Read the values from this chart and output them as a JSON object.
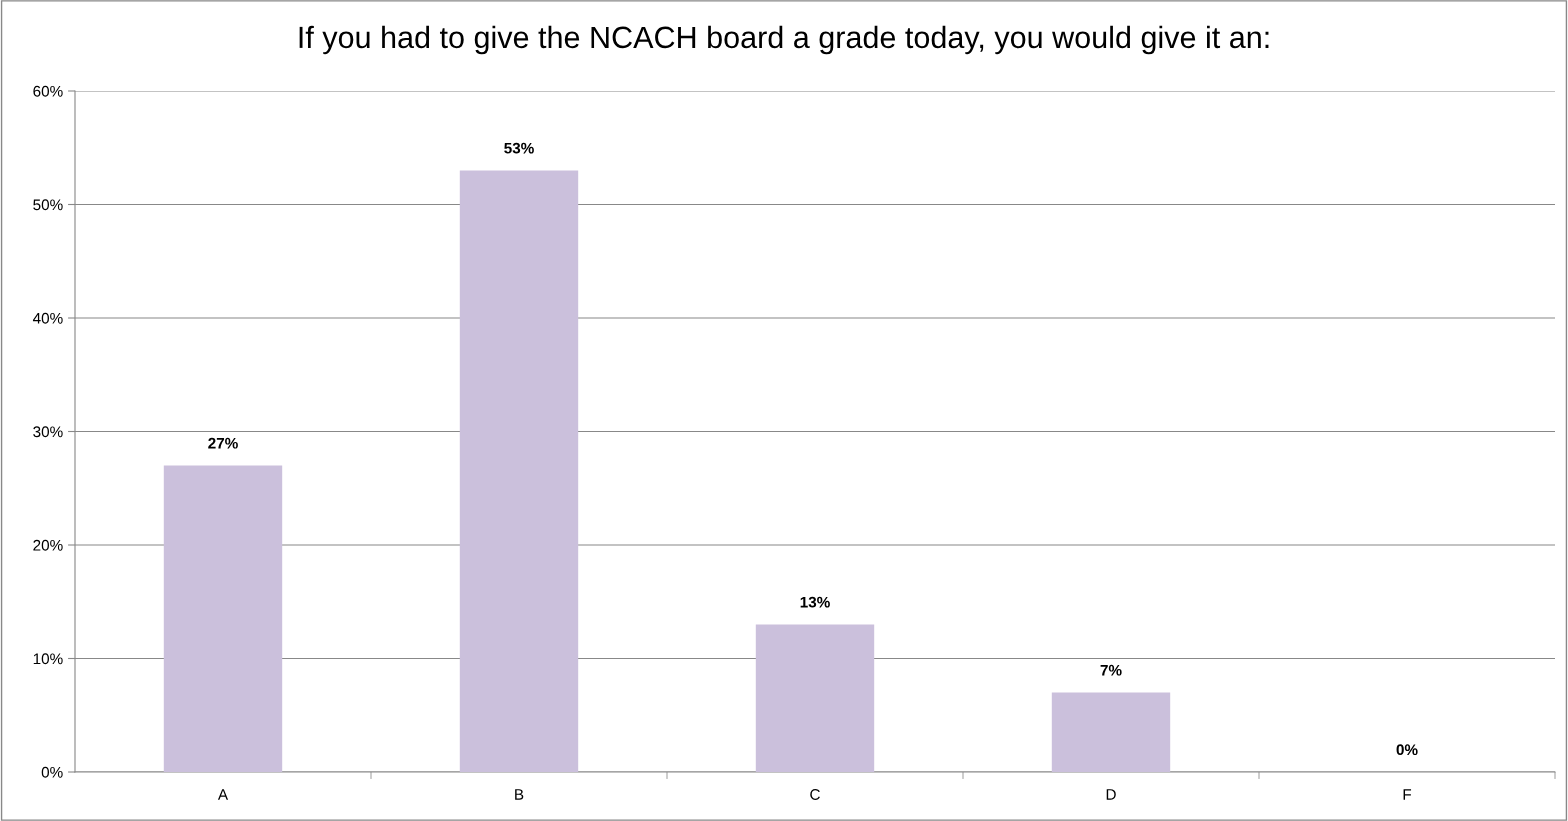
{
  "chart_data": {
    "type": "bar",
    "title": "If you had to give the NCACH board a grade today, you would give it an:",
    "categories": [
      "A",
      "B",
      "C",
      "D",
      "F"
    ],
    "values": [
      27,
      53,
      13,
      7,
      0
    ],
    "value_labels": [
      "27%",
      "53%",
      "13%",
      "7%",
      "0%"
    ],
    "color": "#cbc0dc",
    "ylim": [
      0,
      60
    ],
    "yticks": [
      {
        "value": 0,
        "label": "0%"
      },
      {
        "value": 10,
        "label": "10%"
      },
      {
        "value": 20,
        "label": "20%"
      },
      {
        "value": 30,
        "label": "30%"
      },
      {
        "value": 40,
        "label": "40%"
      },
      {
        "value": 50,
        "label": "50%"
      },
      {
        "value": 60,
        "label": "60%"
      }
    ],
    "grid": "y",
    "legend": false
  }
}
